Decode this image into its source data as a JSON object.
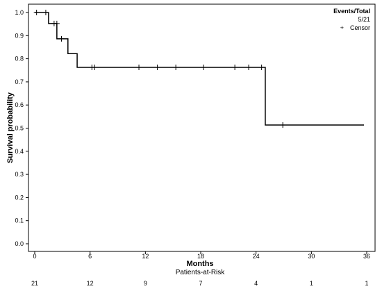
{
  "chart_data": {
    "type": "line",
    "title": "",
    "xlabel": "Months",
    "ylabel": "Survival probability",
    "xlim": [
      0,
      36
    ],
    "ylim": [
      0.0,
      1.0
    ],
    "x_ticks": [
      "0",
      "6",
      "12",
      "18",
      "24",
      "30",
      "36"
    ],
    "y_ticks": [
      "0.0",
      "0.1",
      "0.2",
      "0.3",
      "0.4",
      "0.5",
      "0.6",
      "0.7",
      "0.8",
      "0.9",
      "1.0"
    ],
    "grid": false,
    "legend": {
      "placement": "top-right",
      "title": "Events/Total",
      "series_value": "5/21",
      "censor_label": "Censor",
      "censor_symbol": "+"
    },
    "series": [
      {
        "steps": [
          {
            "x": 0,
            "y": 1.0
          },
          {
            "x": 1.5,
            "y": 0.9524
          },
          {
            "x": 2.4,
            "y": 0.8864
          },
          {
            "x": 3.6,
            "y": 0.8221
          },
          {
            "x": 4.6,
            "y": 0.7628
          },
          {
            "x": 25.0,
            "y": 0.5135
          }
        ],
        "end_x": 35.7,
        "censors": [
          {
            "x": 0.2,
            "y": 1.0
          },
          {
            "x": 1.2,
            "y": 1.0
          },
          {
            "x": 2.1,
            "y": 0.9524
          },
          {
            "x": 2.4,
            "y": 0.9524
          },
          {
            "x": 2.9,
            "y": 0.8864
          },
          {
            "x": 6.2,
            "y": 0.7628
          },
          {
            "x": 6.5,
            "y": 0.7628
          },
          {
            "x": 11.3,
            "y": 0.7628
          },
          {
            "x": 13.3,
            "y": 0.7628
          },
          {
            "x": 15.3,
            "y": 0.7628
          },
          {
            "x": 18.3,
            "y": 0.7628
          },
          {
            "x": 21.7,
            "y": 0.7628
          },
          {
            "x": 23.2,
            "y": 0.7628
          },
          {
            "x": 24.6,
            "y": 0.7628
          },
          {
            "x": 26.9,
            "y": 0.5135
          }
        ],
        "color": "#000000"
      }
    ],
    "risk_table": {
      "title": "Patients-at-Risk",
      "times": [
        0,
        6,
        12,
        18,
        24,
        30,
        36
      ],
      "counts": [
        "21",
        "12",
        "9",
        "7",
        "4",
        "1",
        "1"
      ]
    }
  }
}
